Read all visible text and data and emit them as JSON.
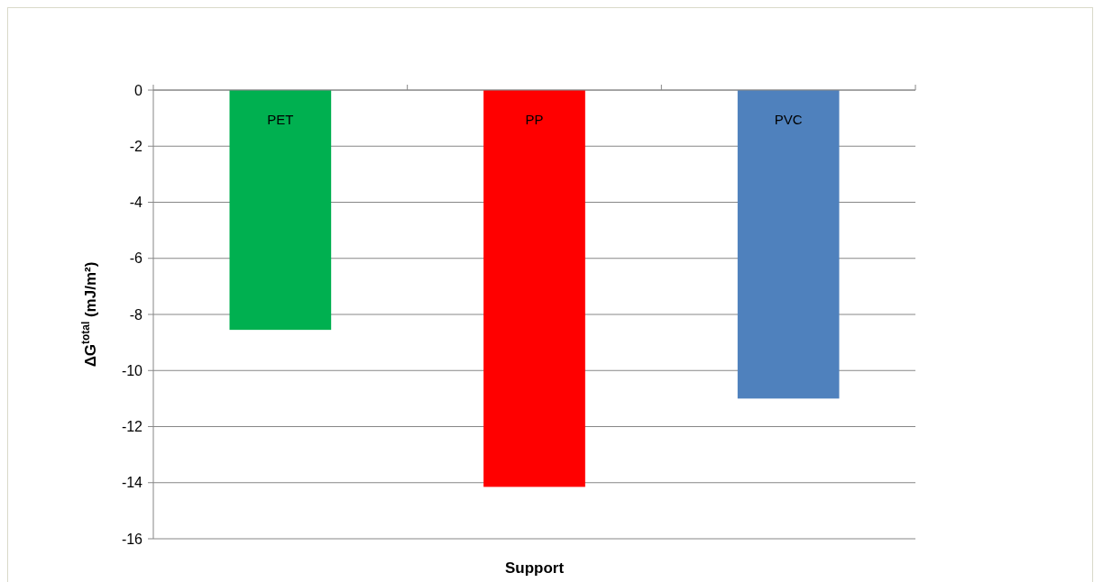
{
  "chart_data": {
    "type": "bar",
    "xlabel": "Support",
    "ylabel": "ΔG$^{total}$ (mJ/m²)",
    "categories": [
      "PET",
      "PP",
      "PVC"
    ],
    "values": [
      -8.55,
      -14.15,
      -11.0
    ],
    "colors": [
      "#00b050",
      "#ff0000",
      "#4f81bd"
    ],
    "ylim": [
      -16,
      0
    ],
    "yticks": [
      -16,
      -14,
      -12,
      -10,
      -8,
      -6,
      -4,
      -2,
      0
    ],
    "grid": "y"
  }
}
